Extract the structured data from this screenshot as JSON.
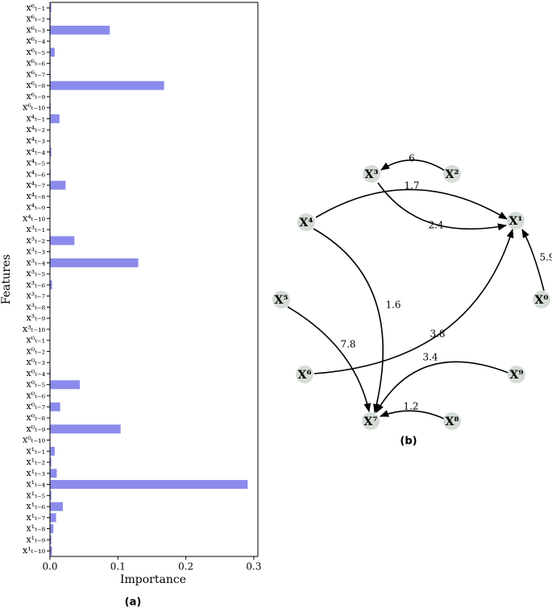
{
  "chart_data": {
    "type": "barh",
    "caption": "(a)",
    "xlabel": "Importance",
    "ylabel": "Features",
    "categories": [
      "x⁶ₜ₋₁",
      "x⁶ₜ₋₂",
      "x⁶ₜ₋₃",
      "x⁶ₜ₋₄",
      "x⁶ₜ₋₅",
      "x⁶ₜ₋₆",
      "x⁶ₜ₋₇",
      "x⁶ₜ₋₈",
      "x⁶ₜ₋₉",
      "x⁶ₜ₋₁₀",
      "x⁴ₜ₋₁",
      "x⁴ₜ₋₂",
      "x⁴ₜ₋₃",
      "x⁴ₜ₋₄",
      "x⁴ₜ₋₅",
      "x⁴ₜ₋₆",
      "x⁴ₜ₋₇",
      "x⁴ₜ₋₈",
      "x⁴ₜ₋₉",
      "x⁴ₜ₋₁₀",
      "x³ₜ₋₁",
      "x³ₜ₋₂",
      "x³ₜ₋₃",
      "x³ₜ₋₄",
      "x³ₜ₋₅",
      "x³ₜ₋₆",
      "x³ₜ₋₇",
      "x³ₜ₋₈",
      "x³ₜ₋₉",
      "x³ₜ₋₁₀",
      "x⁰ₜ₋₁",
      "x⁰ₜ₋₂",
      "x⁰ₜ₋₃",
      "x⁰ₜ₋₄",
      "x⁰ₜ₋₅",
      "x⁰ₜ₋₆",
      "x⁰ₜ₋₇",
      "x⁰ₜ₋₈",
      "x⁰ₜ₋₉",
      "x⁰ₜ₋₁₀",
      "x¹ₜ₋₁",
      "x¹ₜ₋₂",
      "x¹ₜ₋₃",
      "x¹ₜ₋₄",
      "x¹ₜ₋₅",
      "x¹ₜ₋₆",
      "x¹ₜ₋₇",
      "x¹ₜ₋₈",
      "x¹ₜ₋₉",
      "x¹ₜ₋₁₀"
    ],
    "values": [
      0.002,
      0.001,
      0.088,
      0,
      0.007,
      0.001,
      0.001,
      0.168,
      0,
      0.001,
      0.014,
      0,
      0,
      0.002,
      0,
      0.001,
      0.023,
      0,
      0,
      0,
      0,
      0.036,
      0,
      0.13,
      0,
      0.003,
      0,
      0,
      0,
      0,
      0,
      0,
      0,
      0.001,
      0.044,
      0,
      0.015,
      0,
      0.104,
      0,
      0.007,
      0.002,
      0.01,
      0.291,
      0.002,
      0.019,
      0.009,
      0.005,
      0.002,
      0.003
    ],
    "color": "#8b8bec",
    "xlim": [
      0,
      0.306
    ],
    "xticks": [
      {
        "value": 0,
        "label": "0.0"
      },
      0.1,
      0.2,
      0.3
    ]
  },
  "graph": {
    "caption": "(b)",
    "nodes": [
      "X³",
      "X²",
      "X¹",
      "X⁴",
      "X⁰",
      "X⁵",
      "X⁶",
      "X⁹",
      "X⁷",
      "X⁸"
    ],
    "edges": [
      "6",
      "1.7",
      "2.4",
      "5.9",
      "1.6",
      "7.8",
      "3.8",
      "3.4",
      "1.2"
    ]
  }
}
